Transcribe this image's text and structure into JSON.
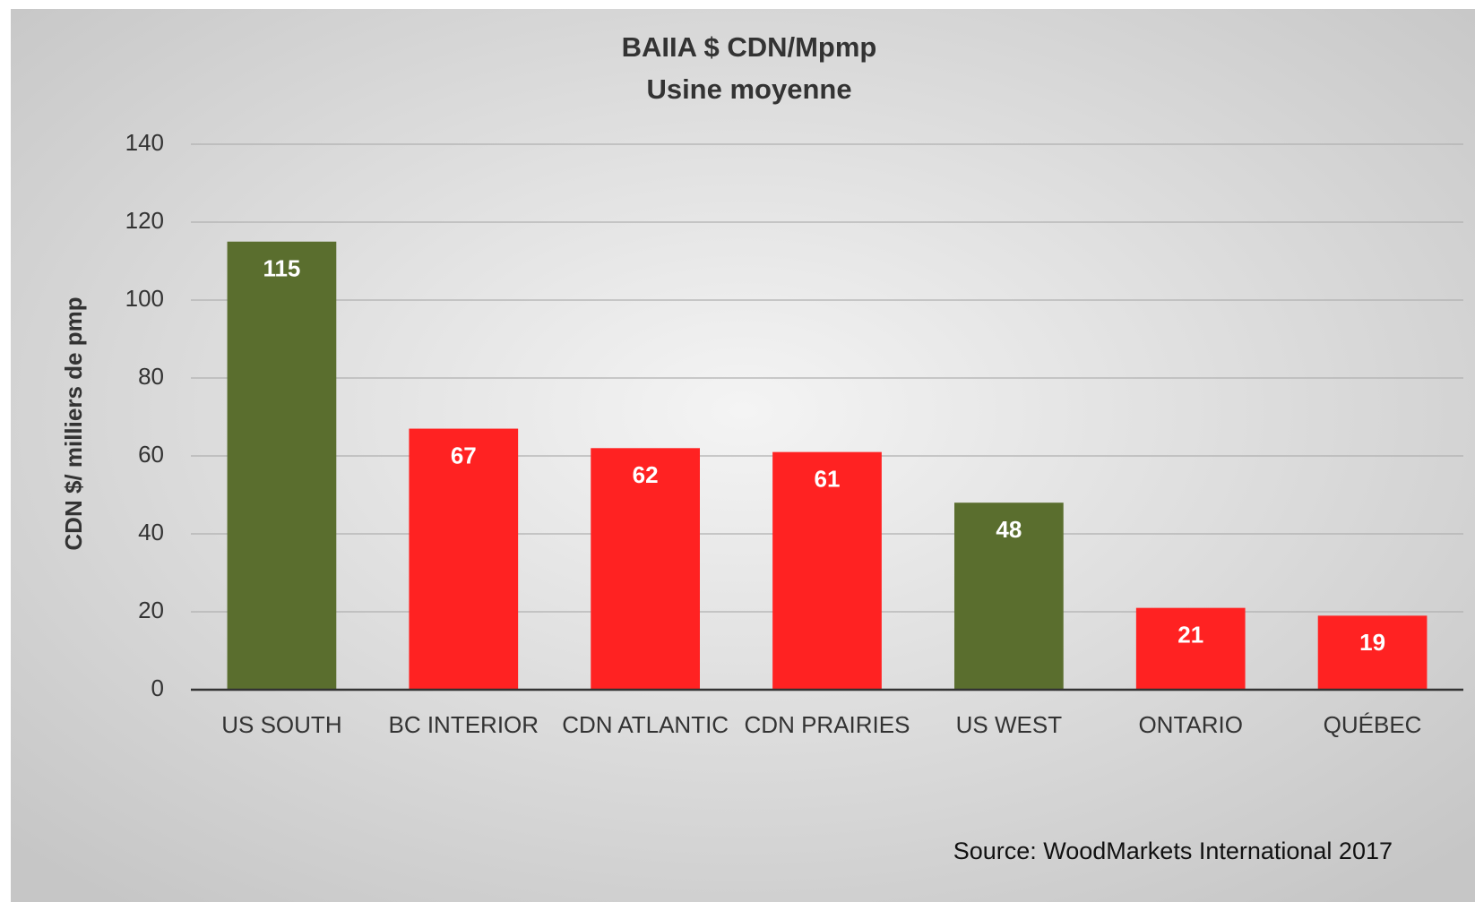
{
  "chart_data": {
    "type": "bar",
    "title": "BAIIA $ CDN/Mpmp",
    "subtitle": "Usine moyenne",
    "y_label": "CDN $/ milliers de pmp",
    "annotation": "Source: WoodMarkets International 2017",
    "categories": [
      "US SOUTH",
      "BC INTERIOR",
      "CDN ATLANTIC",
      "CDN PRAIRIES",
      "US WEST",
      "ONTARIO",
      "QUÉBEC"
    ],
    "values": [
      115,
      67,
      62,
      61,
      48,
      21,
      19
    ],
    "colors": [
      "#5a6e2e",
      "#ff2222",
      "#ff2222",
      "#ff2222",
      "#5a6e2e",
      "#ff2222",
      "#ff2222"
    ],
    "ylim": [
      0,
      140
    ],
    "yticks": [
      0,
      20,
      40,
      60,
      80,
      100,
      120,
      140
    ],
    "grid": true
  }
}
